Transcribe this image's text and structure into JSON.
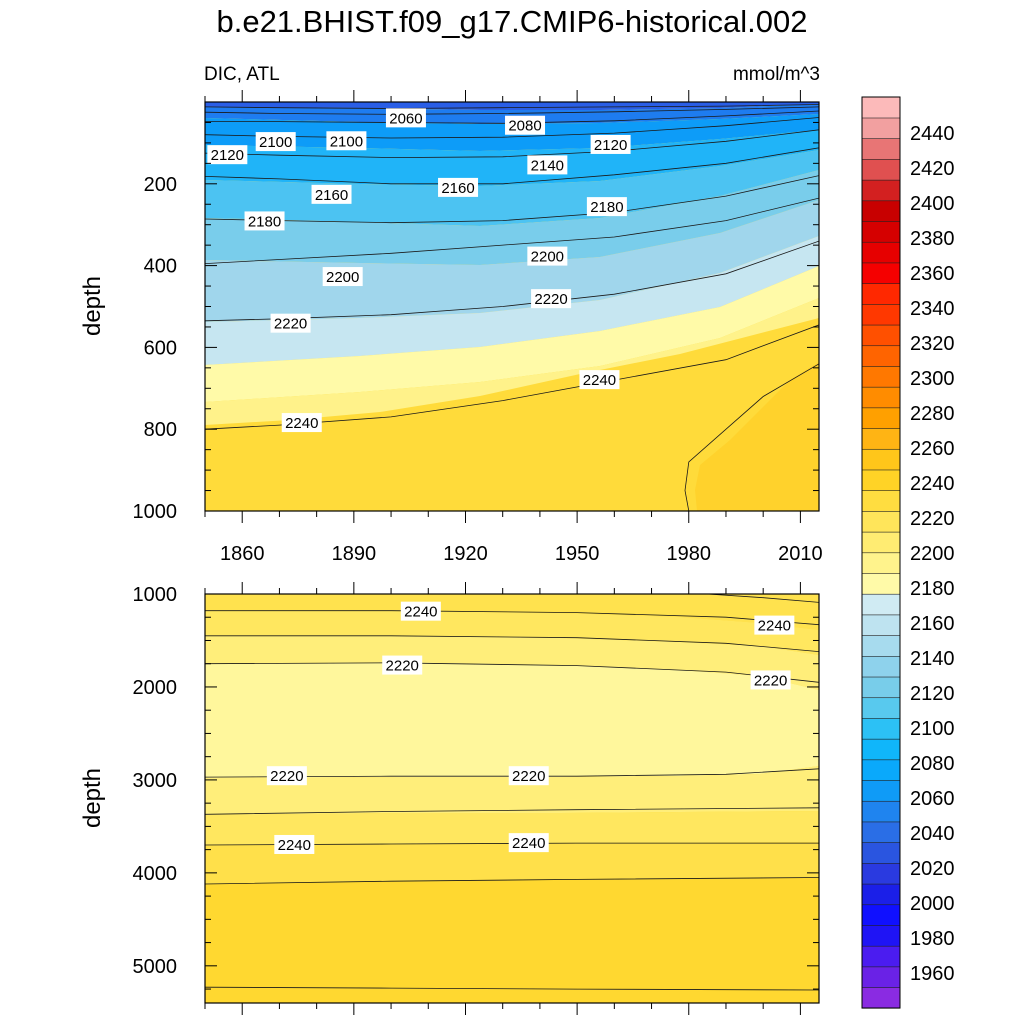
{
  "title": "b.e21.BHIST.f09_g17.CMIP6-historical.002",
  "subtitle_left": "DIC, ATL",
  "subtitle_right": "mmol/m^3",
  "colors": {
    "frame": "#000000",
    "contour_line": "#1a1a1a",
    "label_box": "#ffffff"
  },
  "chart_data": [
    {
      "type": "contour",
      "name": "upper-panel",
      "ylabel": "depth",
      "xlim": [
        1850,
        2015
      ],
      "ylim": [
        0,
        1000
      ],
      "y_reversed": true,
      "x_ticks": [
        1860,
        1890,
        1920,
        1950,
        1980,
        2010
      ],
      "y_ticks": [
        200,
        400,
        600,
        800,
        1000
      ],
      "contours": [
        {
          "level": 2060,
          "x": [
            1850,
            1870,
            1900,
            1930,
            1960,
            1990,
            2015
          ],
          "y": [
            12,
            14,
            16,
            14,
            12,
            10,
            6
          ]
        },
        {
          "level": 2080,
          "x": [
            1850,
            1870,
            1900,
            1930,
            1960,
            1990,
            2015
          ],
          "y": [
            25,
            28,
            30,
            28,
            24,
            18,
            12
          ]
        },
        {
          "level": 2100,
          "x": [
            1850,
            1870,
            1900,
            1930,
            1960,
            1990,
            2015
          ],
          "y": [
            48,
            48,
            50,
            52,
            46,
            34,
            22
          ]
        },
        {
          "level": 2120,
          "x": [
            1850,
            1870,
            1900,
            1930,
            1960,
            1990,
            2015
          ],
          "y": [
            80,
            84,
            88,
            86,
            76,
            58,
            38
          ]
        },
        {
          "level": 2140,
          "x": [
            1850,
            1870,
            1900,
            1930,
            1960,
            1990,
            2015
          ],
          "y": [
            125,
            130,
            136,
            134,
            120,
            96,
            68
          ]
        },
        {
          "level": 2160,
          "x": [
            1850,
            1870,
            1900,
            1930,
            1960,
            1990,
            2015
          ],
          "y": [
            182,
            188,
            200,
            200,
            178,
            150,
            112
          ]
        },
        {
          "level": 2180,
          "x": [
            1850,
            1870,
            1900,
            1930,
            1960,
            1990,
            2015
          ],
          "y": [
            286,
            290,
            295,
            290,
            270,
            230,
            180
          ]
        },
        {
          "level": 2200,
          "x": [
            1850,
            1870,
            1900,
            1930,
            1960,
            1990,
            2015
          ],
          "y": [
            395,
            385,
            370,
            350,
            330,
            290,
            235
          ]
        },
        {
          "level": 2220,
          "x": [
            1850,
            1870,
            1900,
            1930,
            1960,
            1990,
            2015
          ],
          "y": [
            535,
            530,
            520,
            500,
            470,
            420,
            340
          ]
        },
        {
          "level": 2240,
          "x": [
            1850,
            1870,
            1900,
            1930,
            1960,
            1990,
            2015
          ],
          "y": [
            800,
            790,
            770,
            730,
            680,
            630,
            545
          ]
        },
        {
          "level": 2260,
          "x": [
            2015,
            2000,
            1990,
            1980,
            1979,
            1980
          ],
          "y": [
            640,
            720,
            800,
            880,
            950,
            1000
          ]
        }
      ],
      "labels": [
        {
          "text": "2060",
          "x": 1904,
          "y": 40
        },
        {
          "text": "2080",
          "x": 1936,
          "y": 58
        },
        {
          "text": "2100",
          "x": 1869,
          "y": 98
        },
        {
          "text": "2100",
          "x": 1888,
          "y": 96
        },
        {
          "text": "2120",
          "x": 1856,
          "y": 130
        },
        {
          "text": "2120",
          "x": 1959,
          "y": 105
        },
        {
          "text": "2140",
          "x": 1942,
          "y": 155
        },
        {
          "text": "2160",
          "x": 1884,
          "y": 227
        },
        {
          "text": "2160",
          "x": 1918,
          "y": 210
        },
        {
          "text": "2180",
          "x": 1866,
          "y": 292
        },
        {
          "text": "2180",
          "x": 1958,
          "y": 257
        },
        {
          "text": "2200",
          "x": 1887,
          "y": 428
        },
        {
          "text": "2200",
          "x": 1942,
          "y": 378
        },
        {
          "text": "2220",
          "x": 1873,
          "y": 542
        },
        {
          "text": "2220",
          "x": 1943,
          "y": 482
        },
        {
          "text": "2240",
          "x": 1876,
          "y": 785
        },
        {
          "text": "2240",
          "x": 1956,
          "y": 680
        }
      ]
    },
    {
      "type": "contour",
      "name": "lower-panel",
      "ylabel": "depth",
      "xlim": [
        1850,
        2015
      ],
      "ylim": [
        1000,
        5400
      ],
      "y_reversed": true,
      "y_ticks": [
        1000,
        2000,
        3000,
        4000,
        5000
      ],
      "contours": [
        {
          "level": 2260,
          "x": [
            1985,
            2000,
            2015
          ],
          "y": [
            1000,
            1040,
            1090
          ]
        },
        {
          "level": 2240,
          "x": [
            1850,
            1900,
            1950,
            1990,
            2015
          ],
          "y": [
            1180,
            1180,
            1200,
            1250,
            1330
          ]
        },
        {
          "level": 2230,
          "x": [
            1850,
            1900,
            1950,
            1990,
            2015
          ],
          "y": [
            1450,
            1450,
            1470,
            1530,
            1620
          ]
        },
        {
          "level": 2220,
          "x": [
            1850,
            1900,
            1950,
            1990,
            2015
          ],
          "y": [
            1750,
            1740,
            1770,
            1840,
            1950
          ]
        },
        {
          "level": 2220,
          "x": [
            1850,
            1900,
            1950,
            1990,
            2015
          ],
          "y": [
            2970,
            2960,
            2960,
            2940,
            2880
          ]
        },
        {
          "level": 2230,
          "x": [
            1850,
            1900,
            1950,
            2015
          ],
          "y": [
            3370,
            3340,
            3320,
            3300
          ]
        },
        {
          "level": 2240,
          "x": [
            1850,
            1900,
            1950,
            2015
          ],
          "y": [
            3700,
            3690,
            3680,
            3680
          ]
        },
        {
          "level": 2250,
          "x": [
            1850,
            1900,
            1950,
            2015
          ],
          "y": [
            4120,
            4090,
            4070,
            4050
          ]
        },
        {
          "level": 2260,
          "x": [
            1850,
            1900,
            1950,
            2015
          ],
          "y": [
            5230,
            5240,
            5250,
            5260
          ]
        }
      ],
      "labels": [
        {
          "text": "2240",
          "x": 1908,
          "y": 1190
        },
        {
          "text": "2240",
          "x": 2003,
          "y": 1340
        },
        {
          "text": "2220",
          "x": 1903,
          "y": 1770
        },
        {
          "text": "2220",
          "x": 2002,
          "y": 1930
        },
        {
          "text": "2220",
          "x": 1872,
          "y": 2960
        },
        {
          "text": "2220",
          "x": 1937,
          "y": 2960
        },
        {
          "text": "2240",
          "x": 1874,
          "y": 3700
        },
        {
          "text": "2240",
          "x": 1937,
          "y": 3680
        }
      ]
    }
  ],
  "colorbar": {
    "levels": [
      "1960",
      "1980",
      "2000",
      "2020",
      "2040",
      "2060",
      "2080",
      "2100",
      "2120",
      "2140",
      "2160",
      "2180",
      "2200",
      "2220",
      "2240",
      "2260",
      "2280",
      "2300",
      "2320",
      "2340",
      "2360",
      "2380",
      "2400",
      "2420",
      "2440"
    ],
    "colors": [
      "#8a2be2",
      "#6a22e6",
      "#4b1cf0",
      "#1f14f5",
      "#1010ff",
      "#1b1fe8",
      "#2a3ae0",
      "#2a55e0",
      "#2a6ee6",
      "#1f84ef",
      "#0f9bf7",
      "#0aa9fb",
      "#10b6fa",
      "#2cc1f5",
      "#58c9ee",
      "#78cdea",
      "#8ed2ec",
      "#a7dbee",
      "#bee3f0",
      "#d0ebf3",
      "#fffaa8",
      "#fff38c",
      "#ffec72",
      "#ffe55a",
      "#ffdd40",
      "#ffd326",
      "#ffc61a",
      "#ffb414",
      "#ffa000",
      "#ff8c00",
      "#ff7800",
      "#ff6400",
      "#ff5000",
      "#ff3800",
      "#ff2800",
      "#f50000",
      "#e60000",
      "#d50000",
      "#c80000",
      "#d32020",
      "#e05050",
      "#e87575",
      "#f2a0a0",
      "#fcbaba"
    ]
  }
}
